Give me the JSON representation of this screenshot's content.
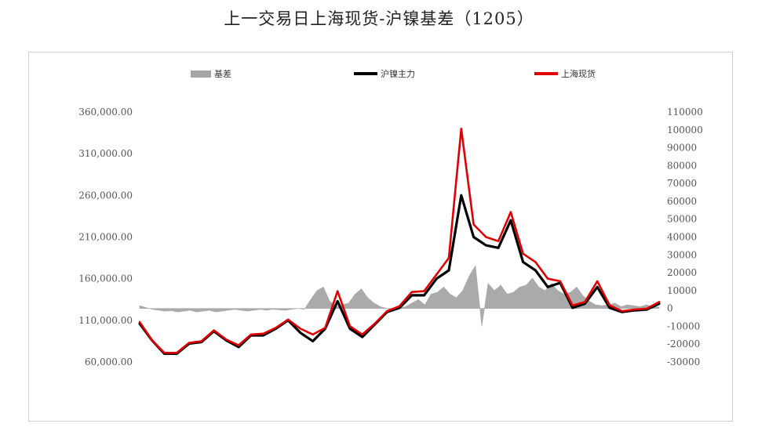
{
  "title": "上一交易日上海现货-沪镍基差（1205）",
  "chart_data": {
    "type": "line",
    "title": "上一交易日上海现货-沪镍基差（1205）",
    "legend_position": "top",
    "grid": false,
    "series": [
      {
        "name": "基差",
        "type": "area",
        "axis": "right",
        "color": "#a6a6a6",
        "values": [
          1500,
          500,
          -500,
          -1000,
          -1500,
          -1200,
          -2000,
          -1500,
          -1000,
          -2000,
          -1500,
          -1000,
          -2000,
          -1500,
          -1000,
          -500,
          -1000,
          -1500,
          -1000,
          -500,
          -1000,
          -500,
          -800,
          -1000,
          -500,
          0,
          -500,
          5000,
          10000,
          12000,
          4000,
          1000,
          2000,
          3000,
          8000,
          11000,
          6000,
          3000,
          1000,
          0,
          -1000,
          500,
          1000,
          3000,
          5000,
          2000,
          8000,
          9000,
          12000,
          8000,
          6000,
          10000,
          18000,
          24000,
          -10000,
          14000,
          10000,
          13000,
          8000,
          9000,
          12000,
          13000,
          17000,
          12000,
          10000,
          14000,
          10000,
          8000,
          9000,
          12000,
          7000,
          4000,
          2000,
          1500,
          2000,
          3000,
          1000,
          2000,
          1500,
          1000,
          2000,
          1000,
          800
        ]
      },
      {
        "name": "沪镍主力",
        "type": "line",
        "axis": "left",
        "color": "#000000",
        "values": [
          106000,
          86000,
          70000,
          70000,
          82000,
          84000,
          97000,
          86000,
          78000,
          92000,
          92000,
          100000,
          110000,
          95000,
          85000,
          100000,
          133000,
          100000,
          90000,
          105000,
          120000,
          125000,
          140000,
          140000,
          160000,
          170000,
          260000,
          210000,
          200000,
          197000,
          230000,
          180000,
          170000,
          150000,
          155000,
          125000,
          130000,
          150000,
          125000,
          120000,
          122000,
          123000,
          130000
        ]
      },
      {
        "name": "上海现货",
        "type": "line",
        "axis": "left",
        "color": "#e00000",
        "values": [
          108000,
          86000,
          71000,
          71000,
          83000,
          85000,
          98000,
          87000,
          80000,
          93000,
          94000,
          101000,
          111000,
          100000,
          93000,
          101000,
          145000,
          103000,
          93000,
          106000,
          121000,
          127000,
          144000,
          145000,
          165000,
          185000,
          340000,
          225000,
          210000,
          205000,
          240000,
          190000,
          180000,
          160000,
          157000,
          128000,
          132000,
          157000,
          128000,
          121000,
          123000,
          124000,
          132000
        ]
      }
    ],
    "left_axis": {
      "ylim": [
        60000,
        360000
      ],
      "tick_labels": [
        "360,000.00",
        "310,000.00",
        "260,000.00",
        "210,000.00",
        "160,000.00",
        "110,000.00",
        "60,000.00"
      ]
    },
    "right_axis": {
      "ylim": [
        -30000,
        110000
      ],
      "tick_labels": [
        "110000",
        "100000",
        "90000",
        "80000",
        "70000",
        "60000",
        "50000",
        "40000",
        "30000",
        "20000",
        "10000",
        "0",
        "-10000",
        "-20000",
        "-30000"
      ]
    }
  }
}
